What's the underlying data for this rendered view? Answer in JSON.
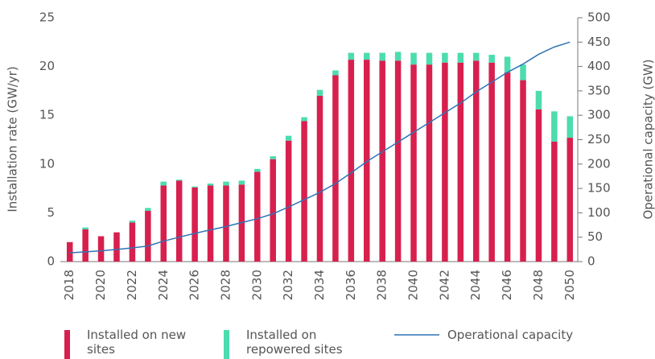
{
  "chart_data": {
    "type": "bar",
    "categories": [
      "2018",
      null,
      "2020",
      null,
      "2022",
      null,
      "2024",
      null,
      "2026",
      null,
      "2028",
      null,
      "2030",
      null,
      "2032",
      null,
      "2034",
      null,
      "2036",
      null,
      "2038",
      null,
      "2040",
      null,
      "2042",
      null,
      "2044",
      null,
      "2046",
      null,
      "2048",
      null,
      "2050"
    ],
    "ylabel": "Installation rate (GW/yr)",
    "y2label": "Operational capacity (GW)",
    "ylim": [
      0,
      25
    ],
    "yticks": [
      0,
      5,
      10,
      15,
      20,
      25
    ],
    "y2lim": [
      0,
      500
    ],
    "y2ticks": [
      0,
      50,
      100,
      150,
      200,
      250,
      300,
      350,
      400,
      450,
      500
    ],
    "stacked": true,
    "series": [
      {
        "name": "Installed on new sites",
        "color": "#d7204e",
        "type": "bar",
        "values": [
          2.0,
          3.3,
          2.6,
          3.0,
          4.0,
          5.2,
          7.8,
          8.3,
          7.6,
          7.8,
          7.8,
          7.9,
          9.2,
          10.5,
          12.4,
          14.4,
          17.0,
          19.1,
          20.7,
          20.7,
          20.6,
          20.6,
          20.2,
          20.2,
          20.4,
          20.4,
          20.6,
          20.4,
          19.4,
          18.6,
          15.6,
          12.3,
          12.7
        ]
      },
      {
        "name": "Installed on repowered sites",
        "color": "#4cdcae",
        "type": "bar",
        "values": [
          0,
          0.2,
          0,
          0,
          0.2,
          0.3,
          0.4,
          0.1,
          0.1,
          0.2,
          0.4,
          0.4,
          0.3,
          0.3,
          0.5,
          0.4,
          0.6,
          0.5,
          0.7,
          0.7,
          0.8,
          0.9,
          1.2,
          1.2,
          1.0,
          1.0,
          0.8,
          0.8,
          1.6,
          1.6,
          1.9,
          3.1,
          2.2
        ]
      },
      {
        "name": "Operational capacity",
        "color": "#2f74b5",
        "type": "line",
        "axis": "y2",
        "values": [
          18,
          20,
          22,
          25,
          28,
          32,
          42,
          50,
          58,
          65,
          72,
          80,
          88,
          98,
          112,
          127,
          142,
          160,
          182,
          205,
          225,
          245,
          265,
          285,
          305,
          325,
          348,
          368,
          388,
          405,
          425,
          440,
          450
        ]
      }
    ]
  }
}
